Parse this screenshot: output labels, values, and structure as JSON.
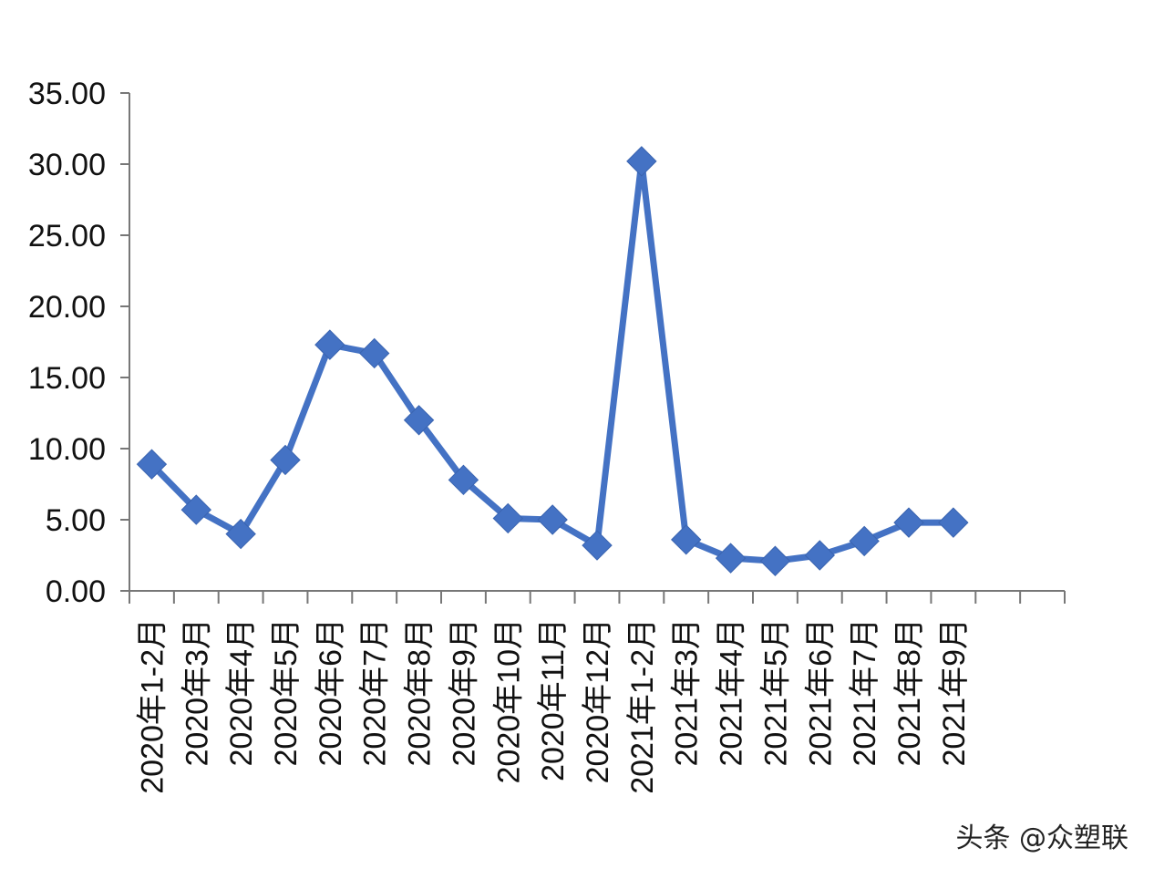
{
  "chart_data": {
    "type": "line",
    "categories": [
      "2020年1-2月",
      "2020年3月",
      "2020年4月",
      "2020年5月",
      "2020年6月",
      "2020年7月",
      "2020年8月",
      "2020年9月",
      "2020年10月",
      "2020年11月",
      "2020年12月",
      "2021年1-2月",
      "2021年3月",
      "2021年4月",
      "2021年5月",
      "2021年6月",
      "2021年7月",
      "2021年8月",
      "2021年9月"
    ],
    "series": [
      {
        "values": [
          8.9,
          5.7,
          4.0,
          9.2,
          17.3,
          16.7,
          12.0,
          7.8,
          5.1,
          5.0,
          3.2,
          30.2,
          3.6,
          2.3,
          2.1,
          2.5,
          3.5,
          4.8,
          4.8
        ]
      }
    ],
    "empty_slots": 2,
    "ylim": [
      0,
      35
    ],
    "yticks": [
      "0.00",
      "5.00",
      "10.00",
      "15.00",
      "20.00",
      "25.00",
      "30.00",
      "35.00"
    ],
    "grid": false,
    "line_color": "#4472c4",
    "marker": "diamond"
  },
  "watermark": "头条 @众塑联"
}
